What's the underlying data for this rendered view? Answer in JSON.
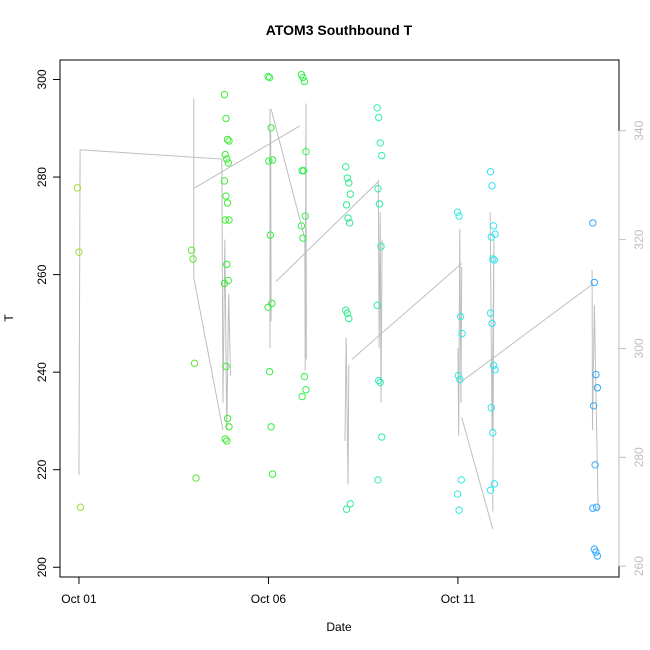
{
  "chart_data": {
    "type": "scatter",
    "title": "ATOM3 Southbound T",
    "xlabel": "Date",
    "ylabel": "T",
    "xlim_days_since_oct01": [
      -0.5,
      14.25
    ],
    "ylim": [
      198,
      304
    ],
    "y2lim": [
      258,
      353
    ],
    "x_ticks": [
      {
        "day": 0,
        "label": "Oct 01"
      },
      {
        "day": 5,
        "label": "Oct 06"
      },
      {
        "day": 10,
        "label": "Oct 11"
      }
    ],
    "y_ticks": [
      200,
      220,
      240,
      260,
      280,
      300
    ],
    "y2_ticks": [
      260,
      280,
      300,
      320,
      340
    ],
    "grid": false,
    "line_color": "#bebebe",
    "clusters": [
      {
        "day": 0.02,
        "color": "#a4dc30",
        "values": [
          277.8,
          264.6,
          212.3
        ]
      },
      {
        "day": 3.03,
        "color": "#5ee630",
        "values": [
          265.0,
          263.2,
          241.8,
          218.3
        ]
      },
      {
        "day": 3.9,
        "color": "#3cee30",
        "values": [
          296.9,
          292.0,
          287.7,
          287.4,
          284.6,
          283.7,
          282.9,
          279.2,
          276.1,
          274.7,
          271.2,
          271.2,
          262.1,
          258.8,
          258.2,
          241.2,
          230.5,
          228.8,
          226.3,
          225.9
        ]
      },
      {
        "day": 5.05,
        "color": "#33f040",
        "values": [
          300.6,
          300.4,
          290.1,
          283.5,
          283.3,
          268.1,
          254.1,
          253.3,
          240.1,
          228.8,
          219.1
        ]
      },
      {
        "day": 5.93,
        "color": "#33f050",
        "values": [
          301.0,
          300.4,
          299.6,
          285.2,
          281.3,
          281.3,
          272.0,
          270.0,
          267.5,
          239.1,
          236.4,
          235.0
        ]
      },
      {
        "day": 7.1,
        "color": "#30eb8c",
        "values": [
          282.1,
          279.8,
          278.8,
          276.5,
          274.3,
          271.6,
          270.6,
          252.7,
          252.1,
          251.0,
          213.0,
          211.9
        ]
      },
      {
        "day": 7.93,
        "color": "#30ebb4",
        "values": [
          294.2,
          292.2,
          287.0,
          284.4,
          277.6,
          274.5,
          265.8,
          253.7,
          238.3,
          237.9,
          226.7,
          217.9
        ]
      },
      {
        "day": 10.05,
        "color": "#30ebe0",
        "values": [
          272.8,
          272.0,
          251.4,
          247.9,
          239.3,
          238.5,
          217.9,
          215.0,
          211.7
        ]
      },
      {
        "day": 10.92,
        "color": "#30e4f0",
        "values": [
          281.1,
          278.2,
          270.0,
          268.3,
          267.7,
          263.2,
          263.0,
          252.1,
          250.0,
          241.4,
          240.5,
          232.7,
          227.6,
          217.1,
          215.8
        ]
      },
      {
        "day": 13.62,
        "color": "#30a8ff",
        "values": [
          270.6,
          258.4,
          239.5,
          236.8,
          233.1,
          221.0,
          212.3,
          212.1,
          203.7,
          203.1,
          202.3
        ]
      }
    ],
    "secondary_line_segments": [
      [
        [
          0,
          276.7
        ],
        [
          0.03,
          336.5
        ],
        [
          3.77,
          334.8
        ],
        [
          3.8,
          290
        ],
        [
          3.85,
          320
        ],
        [
          3.9,
          285
        ],
        [
          3.95,
          310
        ],
        [
          4.0,
          295
        ]
      ],
      [
        [
          3.03,
          346
        ],
        [
          3.03,
          313
        ],
        [
          3.8,
          285
        ]
      ],
      [
        [
          3.03,
          329.4
        ],
        [
          5.83,
          340.9
        ]
      ],
      [
        [
          5.04,
          344
        ],
        [
          5.04,
          300
        ],
        [
          5.06,
          340
        ],
        [
          5.07,
          305
        ]
      ],
      [
        [
          5.07,
          344
        ],
        [
          5.96,
          320.2
        ]
      ],
      [
        [
          5.96,
          320.2
        ],
        [
          5.97,
          296
        ],
        [
          5.99,
          345
        ],
        [
          6.0,
          298
        ]
      ],
      [
        [
          5.2,
          312.3
        ],
        [
          7.89,
          330.6
        ]
      ],
      [
        [
          7.02,
          283
        ],
        [
          7.05,
          302
        ],
        [
          7.1,
          275
        ],
        [
          7.12,
          297
        ]
      ],
      [
        [
          7.2,
          298
        ],
        [
          10.1,
          315.6
        ]
      ],
      [
        [
          7.9,
          331
        ],
        [
          7.92,
          300
        ],
        [
          7.95,
          325
        ],
        [
          7.97,
          290
        ],
        [
          8.0,
          320
        ]
      ],
      [
        [
          10.0,
          300
        ],
        [
          10.02,
          284
        ],
        [
          10.05,
          322
        ],
        [
          10.08,
          290
        ],
        [
          10.1,
          315
        ]
      ],
      [
        [
          10.05,
          293.7
        ],
        [
          13.59,
          312
        ]
      ],
      [
        [
          10.1,
          287.3
        ],
        [
          10.92,
          266.8
        ]
      ],
      [
        [
          10.85,
          325
        ],
        [
          10.9,
          285
        ],
        [
          10.95,
          320
        ],
        [
          10.92,
          270
        ]
      ],
      [
        [
          13.54,
          314.4
        ],
        [
          13.55,
          285
        ],
        [
          13.6,
          308
        ],
        [
          13.7,
          270
        ]
      ]
    ]
  }
}
